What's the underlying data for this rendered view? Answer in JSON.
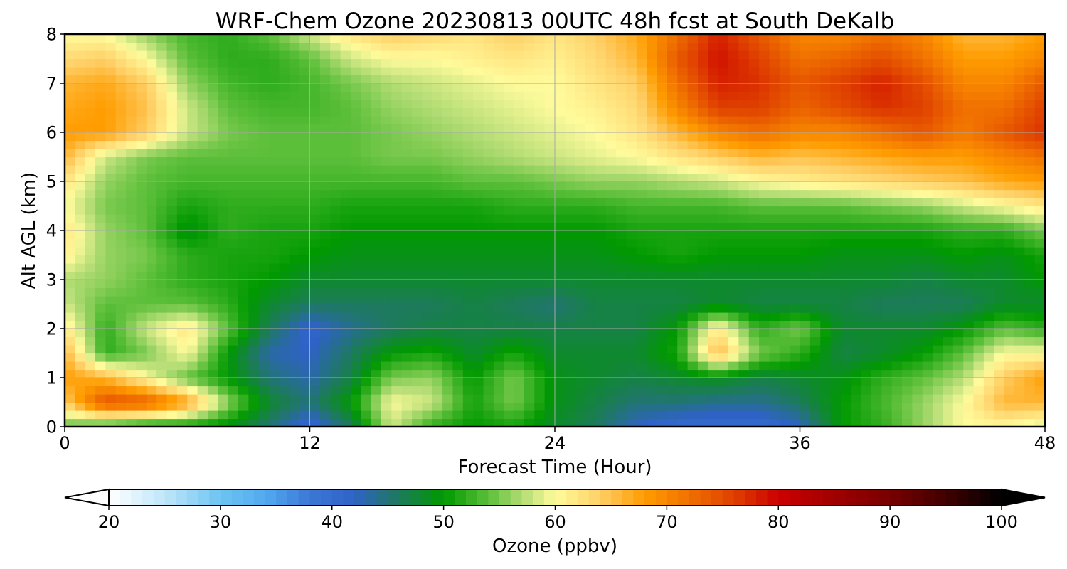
{
  "chart_data": {
    "type": "heatmap",
    "title": "WRF-Chem Ozone  20230813 00UTC 48h fcst at South DeKalb",
    "xlabel": "Forecast Time (Hour)",
    "ylabel": "Alt AGL (km)",
    "xlim": [
      0,
      48
    ],
    "ylim": [
      0,
      8
    ],
    "xticks": [
      "0",
      "12",
      "24",
      "36",
      "48"
    ],
    "yticks": [
      "0",
      "1",
      "2",
      "3",
      "4",
      "5",
      "6",
      "7",
      "8"
    ],
    "grid": true,
    "x": [
      0,
      2,
      4,
      6,
      8,
      10,
      12,
      14,
      16,
      18,
      20,
      22,
      24,
      26,
      28,
      30,
      32,
      34,
      36,
      38,
      40,
      42,
      44,
      46,
      48
    ],
    "y": [
      0,
      0.5,
      1,
      1.5,
      2,
      2.5,
      3,
      3.5,
      4,
      4.5,
      5,
      5.5,
      6,
      6.5,
      7,
      7.5,
      8
    ],
    "z": [
      [
        54,
        52,
        50,
        50,
        49,
        45,
        40,
        46,
        58,
        52,
        50,
        51,
        48,
        46,
        42,
        40,
        40,
        40,
        42,
        50,
        52,
        56,
        60,
        60,
        58
      ],
      [
        64,
        75,
        74,
        68,
        56,
        48,
        45,
        50,
        60,
        58,
        51,
        55,
        49,
        47,
        45,
        45,
        44,
        44,
        46,
        50,
        53,
        56,
        60,
        66,
        66
      ],
      [
        68,
        66,
        60,
        54,
        50,
        45,
        43,
        47,
        55,
        56,
        50,
        55,
        49,
        48,
        47,
        48,
        49,
        47,
        48,
        49,
        52,
        54,
        57,
        64,
        68
      ],
      [
        66,
        52,
        55,
        60,
        50,
        43,
        42,
        46,
        50,
        51,
        48,
        51,
        48,
        48,
        48,
        51,
        66,
        55,
        52,
        47,
        48,
        50,
        54,
        60,
        60
      ],
      [
        62,
        52,
        58,
        62,
        54,
        46,
        41,
        44,
        46,
        47,
        47,
        47,
        47,
        47,
        47,
        50,
        62,
        52,
        55,
        48,
        48,
        48,
        50,
        54,
        52
      ],
      [
        58,
        54,
        54,
        54,
        52,
        48,
        46,
        46,
        46,
        46,
        47,
        46,
        45,
        47,
        47,
        47,
        48,
        47,
        47,
        47,
        46,
        46,
        46,
        48,
        48
      ],
      [
        57,
        56,
        54,
        52,
        51,
        50,
        48,
        48,
        48,
        48,
        48,
        48,
        48,
        48,
        48,
        48,
        48,
        48,
        48,
        48,
        48,
        47,
        48,
        48,
        50
      ],
      [
        61,
        56,
        55,
        52,
        51,
        51,
        50,
        49,
        49,
        49,
        49,
        49,
        49,
        49,
        50,
        51,
        50,
        50,
        50,
        49,
        49,
        49,
        50,
        49,
        51
      ],
      [
        62,
        56,
        54,
        49,
        52,
        51,
        51,
        50,
        50,
        50,
        50,
        50,
        50,
        50,
        51,
        51,
        51,
        51,
        51,
        51,
        51,
        51,
        52,
        52,
        55
      ],
      [
        60,
        55,
        54,
        51,
        52,
        52,
        52,
        51,
        51,
        51,
        51,
        52,
        52,
        52,
        53,
        53,
        53,
        54,
        54,
        54,
        55,
        56,
        58,
        60,
        62
      ],
      [
        62,
        56,
        54,
        53,
        53,
        53,
        53,
        53,
        53,
        53,
        54,
        54,
        55,
        56,
        56,
        57,
        58,
        60,
        61,
        62,
        63,
        64,
        65,
        67,
        68
      ],
      [
        66,
        58,
        55,
        54,
        54,
        54,
        54,
        54,
        55,
        55,
        56,
        57,
        58,
        59,
        60,
        62,
        64,
        66,
        65,
        66,
        67,
        68,
        68,
        70,
        72
      ],
      [
        68,
        68,
        64,
        58,
        55,
        54,
        54,
        54,
        55,
        56,
        57,
        58,
        59,
        60,
        62,
        66,
        70,
        72,
        70,
        70,
        72,
        74,
        71,
        74,
        77
      ],
      [
        67,
        68,
        65,
        58,
        54,
        53,
        53,
        54,
        56,
        57,
        58,
        59,
        60,
        61,
        63,
        70,
        76,
        76,
        73,
        75,
        77,
        76,
        72,
        72,
        76
      ],
      [
        66,
        67,
        64,
        56,
        53,
        52,
        53,
        55,
        57,
        58,
        59,
        60,
        60,
        62,
        64,
        72,
        78,
        77,
        74,
        76,
        78,
        75,
        70,
        70,
        74
      ],
      [
        63,
        64,
        60,
        54,
        52,
        52,
        54,
        58,
        60,
        60,
        61,
        62,
        61,
        63,
        66,
        74,
        79,
        76,
        72,
        73,
        75,
        72,
        68,
        68,
        70
      ],
      [
        60,
        60,
        56,
        53,
        52,
        54,
        58,
        62,
        64,
        63,
        62,
        64,
        62,
        64,
        67,
        72,
        78,
        74,
        70,
        70,
        72,
        70,
        66,
        66,
        68
      ]
    ],
    "colorbar": {
      "label": "Ozone  (ppbv)",
      "range": [
        20,
        100
      ],
      "ticks": [
        "20",
        "30",
        "40",
        "50",
        "60",
        "70",
        "80",
        "90",
        "100"
      ],
      "extend": "both",
      "stops": [
        [
          20,
          "#ffffff"
        ],
        [
          25,
          "#bfe6fa"
        ],
        [
          30,
          "#6cc4f2"
        ],
        [
          34,
          "#52aaf0"
        ],
        [
          38,
          "#3b78d6"
        ],
        [
          42,
          "#2f62c6"
        ],
        [
          46,
          "#1d7a5c"
        ],
        [
          50,
          "#009900"
        ],
        [
          54,
          "#5cbf3a"
        ],
        [
          57,
          "#b2dc74"
        ],
        [
          60,
          "#fffb9c"
        ],
        [
          64,
          "#ffcf66"
        ],
        [
          68,
          "#ff9c00"
        ],
        [
          72,
          "#f07000"
        ],
        [
          76,
          "#df4000"
        ],
        [
          80,
          "#cc0000"
        ],
        [
          85,
          "#a00000"
        ],
        [
          90,
          "#780000"
        ],
        [
          95,
          "#400000"
        ],
        [
          100,
          "#000000"
        ]
      ]
    }
  }
}
